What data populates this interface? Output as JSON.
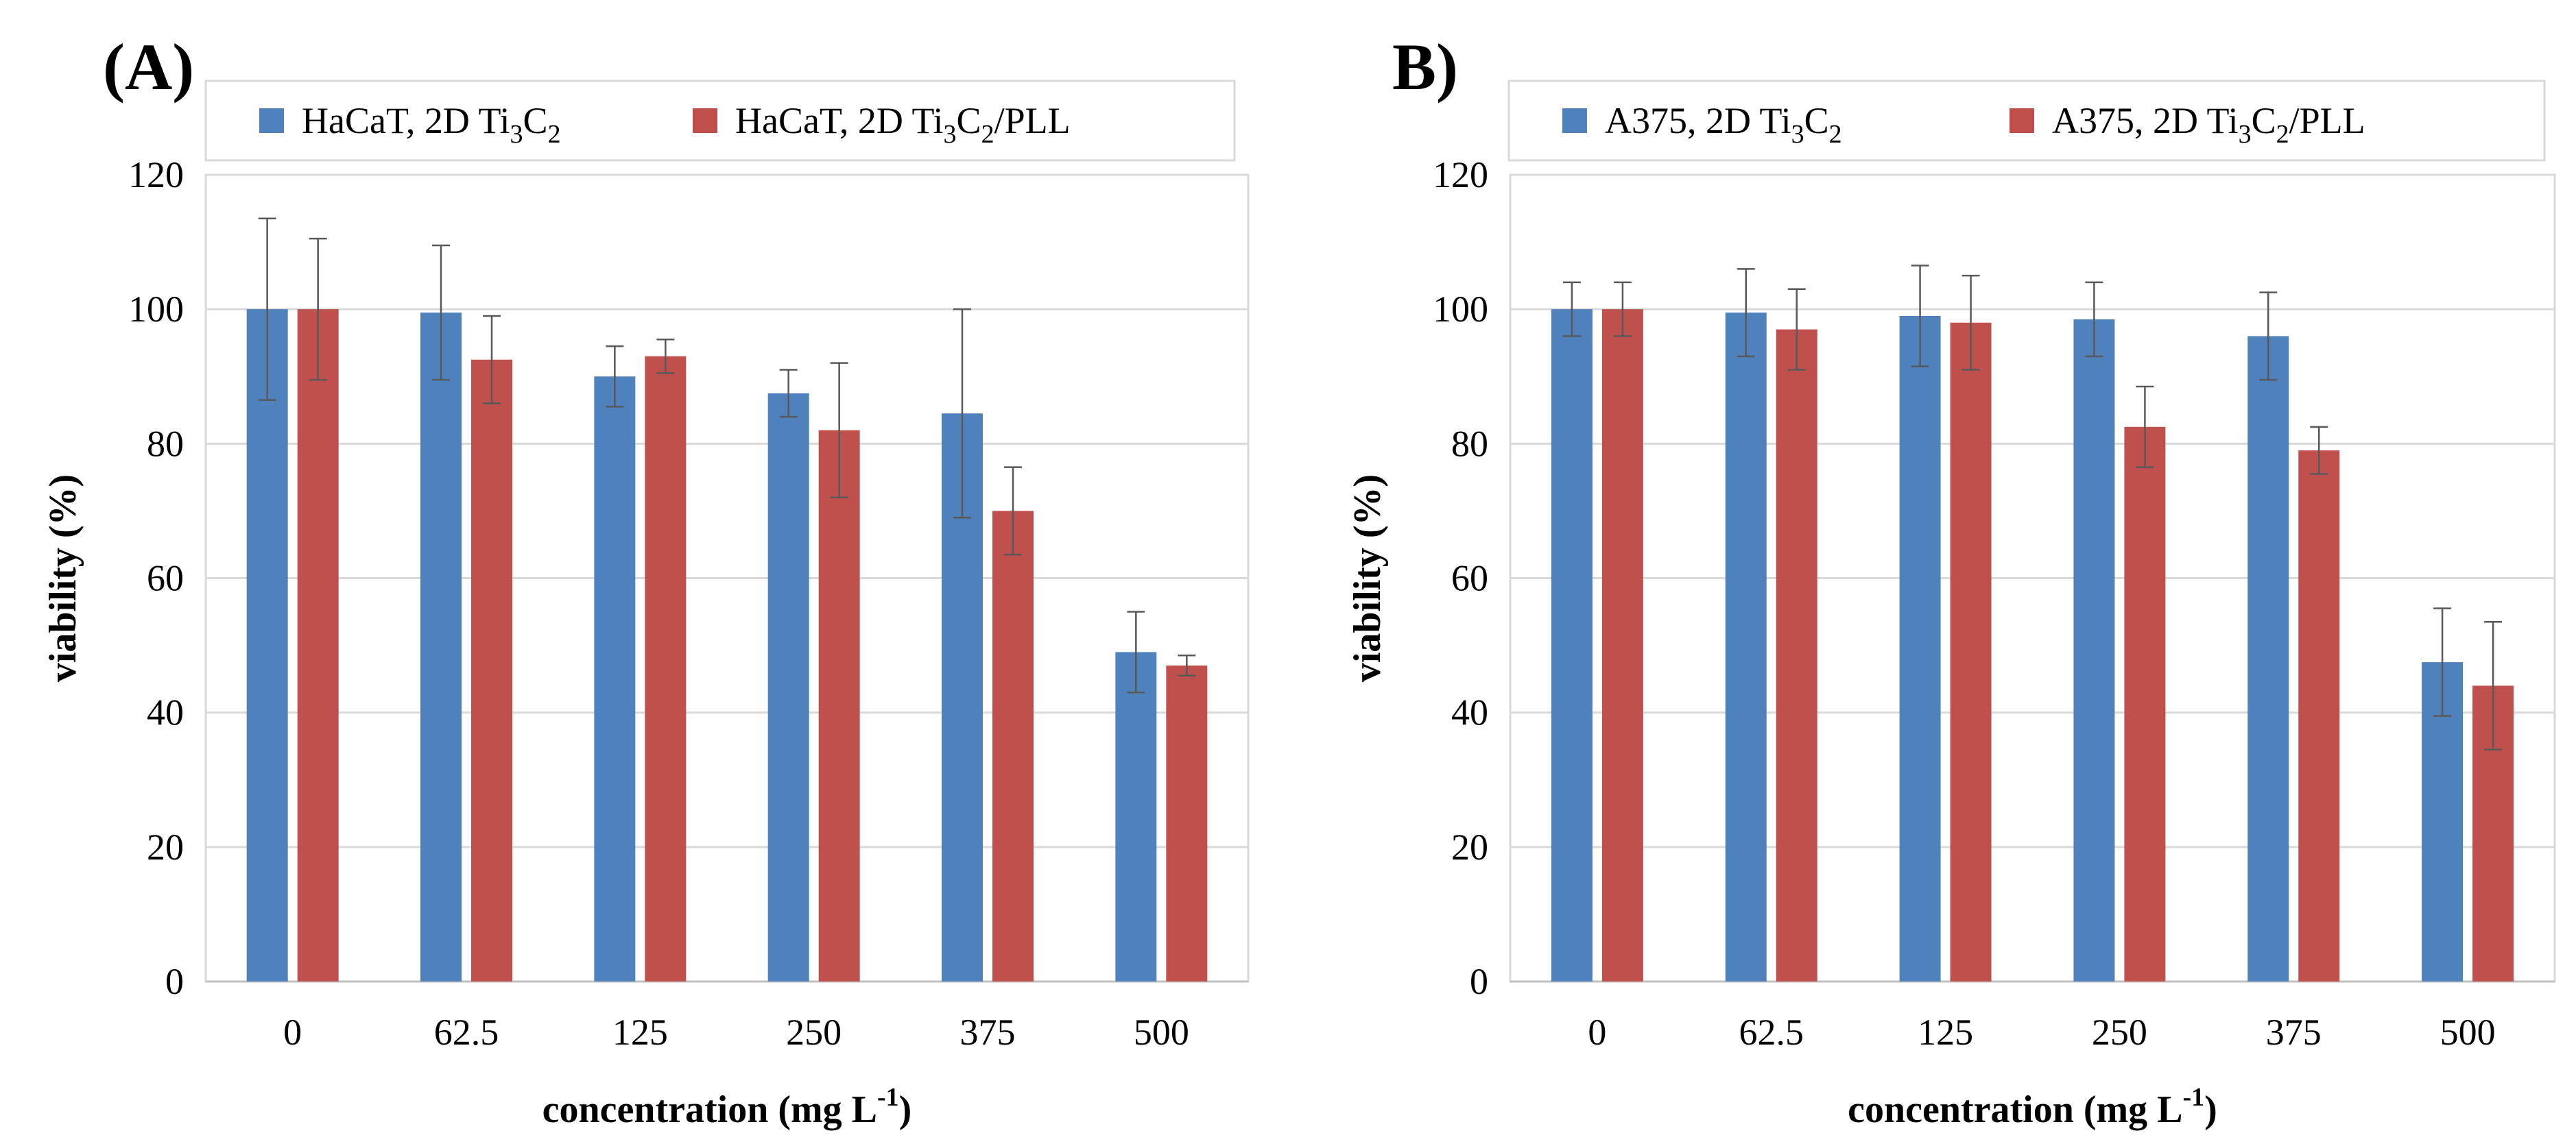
{
  "chart_data": [
    {
      "type": "bar",
      "panel_label": "(A)",
      "categories": [
        "0",
        "62.5",
        "125",
        "250",
        "375",
        "500"
      ],
      "xlabel": "concentration (mg L",
      "xlabel_sup": "-1",
      "xlabel_end": ")",
      "ylabel": "viability (%)",
      "ylim": [
        0,
        120
      ],
      "yticks": [
        "0",
        "20",
        "40",
        "60",
        "80",
        "100",
        "120"
      ],
      "grid": true,
      "legend_position": "top",
      "series": [
        {
          "name": "HaCaT, 2D Ti3C2",
          "legend": {
            "a": "HaCaT, 2D Ti",
            "s1": "3",
            "b": "C",
            "s2": "2",
            "c": ""
          },
          "color": "#4f81bd",
          "values": [
            100,
            99.5,
            90,
            87.5,
            84.5,
            49
          ],
          "errors": [
            13.5,
            10,
            4.5,
            3.5,
            15.5,
            6
          ]
        },
        {
          "name": "HaCaT, 2D Ti3C2/PLL",
          "legend": {
            "a": "HaCaT, 2D Ti",
            "s1": "3",
            "b": "C",
            "s2": "2",
            "c": "/PLL"
          },
          "color": "#c0504d",
          "values": [
            100,
            92.5,
            93,
            82,
            70,
            47
          ],
          "errors": [
            10.5,
            6.5,
            2.5,
            10,
            6.5,
            1.5
          ]
        }
      ]
    },
    {
      "type": "bar",
      "panel_label": "B)",
      "categories": [
        "0",
        "62.5",
        "125",
        "250",
        "375",
        "500"
      ],
      "xlabel": "concentration (mg L",
      "xlabel_sup": "-1",
      "xlabel_end": ")",
      "ylabel": "viability (%)",
      "ylim": [
        0,
        120
      ],
      "yticks": [
        "0",
        "20",
        "40",
        "60",
        "80",
        "100",
        "120"
      ],
      "grid": true,
      "legend_position": "top",
      "series": [
        {
          "name": "A375, 2D Ti3C2",
          "legend": {
            "a": "A375, 2D Ti",
            "s1": "3",
            "b": "C",
            "s2": "2",
            "c": ""
          },
          "color": "#4f81bd",
          "values": [
            100,
            99.5,
            99,
            98.5,
            96,
            47.5
          ],
          "errors": [
            4,
            6.5,
            7.5,
            5.5,
            6.5,
            8
          ]
        },
        {
          "name": "A375, 2D Ti3C2/PLL",
          "legend": {
            "a": "A375, 2D Ti",
            "s1": "3",
            "b": "C",
            "s2": "2",
            "c": "/PLL"
          },
          "color": "#c0504d",
          "values": [
            100,
            97,
            98,
            82.5,
            79,
            44
          ],
          "errors": [
            4,
            6,
            7,
            6,
            3.5,
            9.5
          ]
        }
      ]
    }
  ]
}
